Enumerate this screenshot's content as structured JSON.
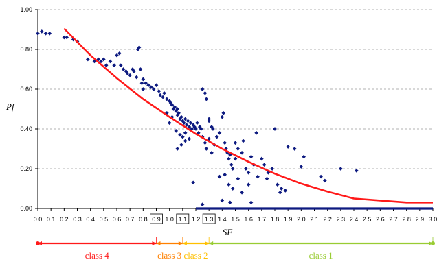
{
  "chart_data": {
    "type": "scatter",
    "title": "",
    "xlabel": "SF",
    "ylabel": "Pf",
    "xlim": [
      0.0,
      3.0
    ],
    "ylim": [
      0.0,
      1.0
    ],
    "x_ticks": [
      0.0,
      0.1,
      0.2,
      0.3,
      0.4,
      0.5,
      0.6,
      0.7,
      0.8,
      0.9,
      1.0,
      1.1,
      1.2,
      1.3,
      1.4,
      1.5,
      1.6,
      1.7,
      1.8,
      1.9,
      2.0,
      2.1,
      2.2,
      2.3,
      2.4,
      2.5,
      2.6,
      2.7,
      2.8,
      2.9,
      3.0
    ],
    "x_tick_labels": [
      "0.0",
      "0.1",
      "0.2",
      "0.3",
      "0.4",
      "0.5",
      "0.6",
      "0.7",
      "0.8",
      "0.9",
      "1.0",
      "1.1",
      "1.2",
      "1.3",
      "1.4",
      "1.5",
      "1.6",
      "1.7",
      "1.8",
      "1.9",
      "2.0",
      "2.1",
      "2.2",
      "2.3",
      "2.4",
      "2.5",
      "2.6",
      "2.7",
      "2.8",
      "2.9",
      "3.0"
    ],
    "boxed_x_ticks": [
      "0.9",
      "1.1",
      "1.3"
    ],
    "y_ticks": [
      0.0,
      0.2,
      0.4,
      0.6,
      0.8,
      1.0
    ],
    "y_tick_labels": [
      "0.00",
      "0.20",
      "0.40",
      "0.60",
      "0.80",
      "1.00"
    ],
    "grid": "horizontal dashed",
    "colors": {
      "points": "#0d1a80",
      "fit_curve": "#ff1a1a",
      "class4": "#ff1a1a",
      "class3": "#ff8000",
      "class2": "#ffc000",
      "class1": "#99cc33",
      "grid": "#999999"
    },
    "series": [
      {
        "type": "scatter",
        "points": [
          [
            0.0,
            0.88
          ],
          [
            0.03,
            0.89
          ],
          [
            0.06,
            0.88
          ],
          [
            0.09,
            0.88
          ],
          [
            0.2,
            0.86
          ],
          [
            0.22,
            0.86
          ],
          [
            0.27,
            0.85
          ],
          [
            0.3,
            0.84
          ],
          [
            0.38,
            0.75
          ],
          [
            0.43,
            0.74
          ],
          [
            0.46,
            0.75
          ],
          [
            0.48,
            0.74
          ],
          [
            0.5,
            0.75
          ],
          [
            0.52,
            0.72
          ],
          [
            0.55,
            0.74
          ],
          [
            0.58,
            0.72
          ],
          [
            0.6,
            0.77
          ],
          [
            0.62,
            0.78
          ],
          [
            0.63,
            0.72
          ],
          [
            0.65,
            0.7
          ],
          [
            0.67,
            0.69
          ],
          [
            0.68,
            0.68
          ],
          [
            0.7,
            0.67
          ],
          [
            0.72,
            0.7
          ],
          [
            0.73,
            0.69
          ],
          [
            0.75,
            0.66
          ],
          [
            0.76,
            0.8
          ],
          [
            0.77,
            0.81
          ],
          [
            0.78,
            0.7
          ],
          [
            0.79,
            0.63
          ],
          [
            0.8,
            0.65
          ],
          [
            0.8,
            0.6
          ],
          [
            0.82,
            0.63
          ],
          [
            0.84,
            0.62
          ],
          [
            0.86,
            0.61
          ],
          [
            0.88,
            0.6
          ],
          [
            0.9,
            0.62
          ],
          [
            0.92,
            0.59
          ],
          [
            0.93,
            0.57
          ],
          [
            0.95,
            0.56
          ],
          [
            0.96,
            0.58
          ],
          [
            0.98,
            0.55
          ],
          [
            1.0,
            0.54
          ],
          [
            1.01,
            0.53
          ],
          [
            1.02,
            0.52
          ],
          [
            1.03,
            0.5
          ],
          [
            1.04,
            0.51
          ],
          [
            1.05,
            0.49
          ],
          [
            1.06,
            0.5
          ],
          [
            1.06,
            0.47
          ],
          [
            1.07,
            0.48
          ],
          [
            1.08,
            0.45
          ],
          [
            1.09,
            0.46
          ],
          [
            1.1,
            0.44
          ],
          [
            1.11,
            0.43
          ],
          [
            1.12,
            0.45
          ],
          [
            1.13,
            0.42
          ],
          [
            1.14,
            0.44
          ],
          [
            1.15,
            0.41
          ],
          [
            1.16,
            0.43
          ],
          [
            1.17,
            0.4
          ],
          [
            1.18,
            0.42
          ],
          [
            1.19,
            0.41
          ],
          [
            1.2,
            0.4
          ],
          [
            1.21,
            0.43
          ],
          [
            1.22,
            0.38
          ],
          [
            1.23,
            0.41
          ],
          [
            1.24,
            0.4
          ],
          [
            1.05,
            0.39
          ],
          [
            1.08,
            0.37
          ],
          [
            1.1,
            0.36
          ],
          [
            1.12,
            0.34
          ],
          [
            1.15,
            0.35
          ],
          [
            1.18,
            0.13
          ],
          [
            1.0,
            0.43
          ],
          [
            1.02,
            0.46
          ],
          [
            0.98,
            0.48
          ],
          [
            1.06,
            0.3
          ],
          [
            1.09,
            0.32
          ],
          [
            1.12,
            0.38
          ],
          [
            1.25,
            0.6
          ],
          [
            1.27,
            0.58
          ],
          [
            1.28,
            0.55
          ],
          [
            1.3,
            0.45
          ],
          [
            1.3,
            0.44
          ],
          [
            1.32,
            0.41
          ],
          [
            1.33,
            0.4
          ],
          [
            1.25,
            0.36
          ],
          [
            1.27,
            0.33
          ],
          [
            1.28,
            0.3
          ],
          [
            1.3,
            0.35
          ],
          [
            1.32,
            0.28
          ],
          [
            1.34,
            0.32
          ],
          [
            1.36,
            0.36
          ],
          [
            1.38,
            0.38
          ],
          [
            1.4,
            0.46
          ],
          [
            1.41,
            0.48
          ],
          [
            1.42,
            0.33
          ],
          [
            1.43,
            0.3
          ],
          [
            1.44,
            0.28
          ],
          [
            1.45,
            0.25
          ],
          [
            1.46,
            0.27
          ],
          [
            1.47,
            0.22
          ],
          [
            1.48,
            0.2
          ],
          [
            1.5,
            0.33
          ],
          [
            1.5,
            0.25
          ],
          [
            1.52,
            0.3
          ],
          [
            1.52,
            0.15
          ],
          [
            1.55,
            0.28
          ],
          [
            1.56,
            0.34
          ],
          [
            1.58,
            0.2
          ],
          [
            1.6,
            0.18
          ],
          [
            1.6,
            0.12
          ],
          [
            1.62,
            0.26
          ],
          [
            1.64,
            0.22
          ],
          [
            1.66,
            0.38
          ],
          [
            1.67,
            0.16
          ],
          [
            1.7,
            0.25
          ],
          [
            1.72,
            0.22
          ],
          [
            1.74,
            0.15
          ],
          [
            1.75,
            0.18
          ],
          [
            1.78,
            0.2
          ],
          [
            1.8,
            0.4
          ],
          [
            1.82,
            0.12
          ],
          [
            1.84,
            0.08
          ],
          [
            1.85,
            0.1
          ],
          [
            1.88,
            0.09
          ],
          [
            1.9,
            0.31
          ],
          [
            1.95,
            0.3
          ],
          [
            2.0,
            0.21
          ],
          [
            2.02,
            0.26
          ],
          [
            2.15,
            0.16
          ],
          [
            2.18,
            0.14
          ],
          [
            2.3,
            0.2
          ],
          [
            2.42,
            0.19
          ],
          [
            1.38,
            0.16
          ],
          [
            1.42,
            0.17
          ],
          [
            1.45,
            0.12
          ],
          [
            1.48,
            0.1
          ],
          [
            1.55,
            0.08
          ],
          [
            1.25,
            0.02
          ],
          [
            1.4,
            0.04
          ],
          [
            1.46,
            0.03
          ],
          [
            1.62,
            0.03
          ]
        ]
      },
      {
        "type": "line",
        "points": [
          [
            0.2,
            0.905
          ],
          [
            0.4,
            0.77
          ],
          [
            0.6,
            0.655
          ],
          [
            0.8,
            0.55
          ],
          [
            1.0,
            0.46
          ],
          [
            1.2,
            0.375
          ],
          [
            1.4,
            0.3
          ],
          [
            1.6,
            0.235
          ],
          [
            1.8,
            0.175
          ],
          [
            2.0,
            0.125
          ],
          [
            2.2,
            0.085
          ],
          [
            2.4,
            0.05
          ],
          [
            2.6,
            0.04
          ],
          [
            2.8,
            0.03
          ],
          [
            3.0,
            0.03
          ]
        ]
      },
      {
        "type": "zero-band",
        "x_start": 1.2,
        "x_end": 3.0,
        "y": 0.0
      }
    ],
    "class_bands": [
      {
        "label": "class 4",
        "x_start": 0.0,
        "x_end": 0.9
      },
      {
        "label": "class 3",
        "x_start": 0.9,
        "x_end": 1.1
      },
      {
        "label": "class 2",
        "x_start": 1.1,
        "x_end": 1.3
      },
      {
        "label": "class 1",
        "x_start": 1.3,
        "x_end": 3.0
      }
    ]
  }
}
